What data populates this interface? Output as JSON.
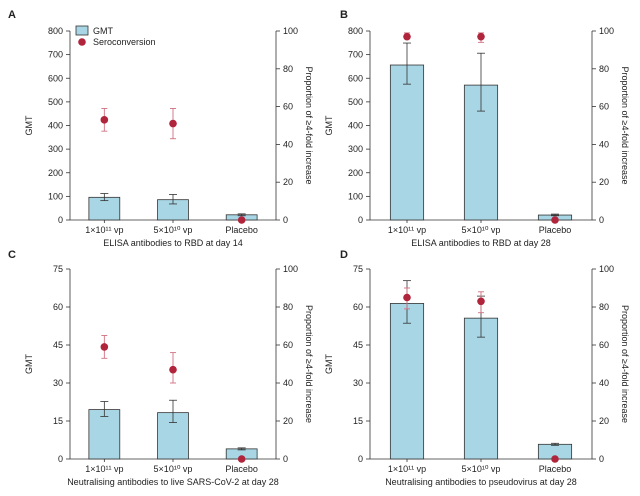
{
  "colors": {
    "gmt_fill": "#a8d6e4",
    "gmt_stroke": "#333333",
    "seroconversion": "#b0243c",
    "seroconversion_err": "#d07080",
    "axis": "#333333"
  },
  "legend": {
    "gmt_label": "GMT",
    "seroconversion_label": "Seroconversion",
    "placement": "top-left of panel A"
  },
  "chart_data": [
    {
      "panel": "A",
      "type": "bar",
      "categories": [
        "1×10¹¹ vp",
        "5×10¹⁰ vp",
        "Placebo"
      ],
      "xlabel": "ELISA antibodies to RBD at day 14",
      "ylabel": "GMT",
      "y2label": "Proportion of ≥4-fold increase",
      "ylim": [
        0,
        800
      ],
      "yticks": [
        0,
        100,
        200,
        300,
        400,
        500,
        600,
        700,
        800
      ],
      "y2lim": [
        0,
        100
      ],
      "y2ticks": [
        0,
        20,
        40,
        60,
        80,
        100
      ],
      "gmt": {
        "values": [
          96,
          86,
          22
        ],
        "err_low": [
          82,
          68,
          18
        ],
        "err_high": [
          112,
          108,
          26
        ]
      },
      "seroconversion": {
        "values": [
          53,
          51,
          0
        ],
        "err_low": [
          47,
          43,
          0
        ],
        "err_high": [
          59,
          59,
          0
        ]
      }
    },
    {
      "panel": "B",
      "type": "bar",
      "categories": [
        "1×10¹¹ vp",
        "5×10¹⁰ vp",
        "Placebo"
      ],
      "xlabel": "ELISA antibodies to RBD at day 28",
      "ylabel": "GMT",
      "y2label": "Proportion of ≥4-fold increase",
      "ylim": [
        0,
        800
      ],
      "yticks": [
        0,
        100,
        200,
        300,
        400,
        500,
        600,
        700,
        800
      ],
      "y2lim": [
        0,
        100
      ],
      "y2ticks": [
        0,
        20,
        40,
        60,
        80,
        100
      ],
      "gmt": {
        "values": [
          656,
          571,
          21
        ],
        "err_low": [
          575,
          461,
          18
        ],
        "err_high": [
          749,
          706,
          25
        ]
      },
      "seroconversion": {
        "values": [
          97,
          97,
          0
        ],
        "err_low": [
          97,
          94,
          0
        ],
        "err_high": [
          99,
          99,
          0
        ]
      }
    },
    {
      "panel": "C",
      "type": "bar",
      "categories": [
        "1×10¹¹ vp",
        "5×10¹⁰ vp",
        "Placebo"
      ],
      "xlabel": "Neutralising antibodies to live SARS-CoV-2 at day 28",
      "ylabel": "GMT",
      "y2label": "Proportion of ≥4-fold increase",
      "ylim": [
        0,
        75
      ],
      "yticks": [
        0,
        15,
        30,
        45,
        60,
        75
      ],
      "y2lim": [
        0,
        100
      ],
      "y2ticks": [
        0,
        20,
        40,
        60,
        80,
        100
      ],
      "gmt": {
        "values": [
          19.5,
          18.3,
          4.0
        ],
        "err_low": [
          16.8,
          14.4,
          3.6
        ],
        "err_high": [
          22.7,
          23.2,
          4.4
        ]
      },
      "seroconversion": {
        "values": [
          59,
          47,
          0
        ],
        "err_low": [
          53,
          40,
          0
        ],
        "err_high": [
          65,
          56,
          0
        ]
      }
    },
    {
      "panel": "D",
      "type": "bar",
      "categories": [
        "1×10¹¹ vp",
        "5×10¹⁰ vp",
        "Placebo"
      ],
      "xlabel": "Neutralising antibodies to pseudovirus at day 28",
      "ylabel": "GMT",
      "y2label": "Proportion of ≥4-fold increase",
      "ylim": [
        0,
        75
      ],
      "yticks": [
        0,
        15,
        30,
        45,
        60,
        75
      ],
      "y2lim": [
        0,
        100
      ],
      "y2ticks": [
        0,
        20,
        40,
        60,
        80,
        100
      ],
      "gmt": {
        "values": [
          61.4,
          55.6,
          5.8
        ],
        "err_low": [
          53.6,
          48.1,
          5.4
        ],
        "err_high": [
          70.4,
          64.3,
          6.2
        ]
      },
      "seroconversion": {
        "values": [
          85,
          83,
          0
        ],
        "err_low": [
          79,
          77,
          0
        ],
        "err_high": [
          90,
          88,
          0
        ]
      }
    }
  ]
}
